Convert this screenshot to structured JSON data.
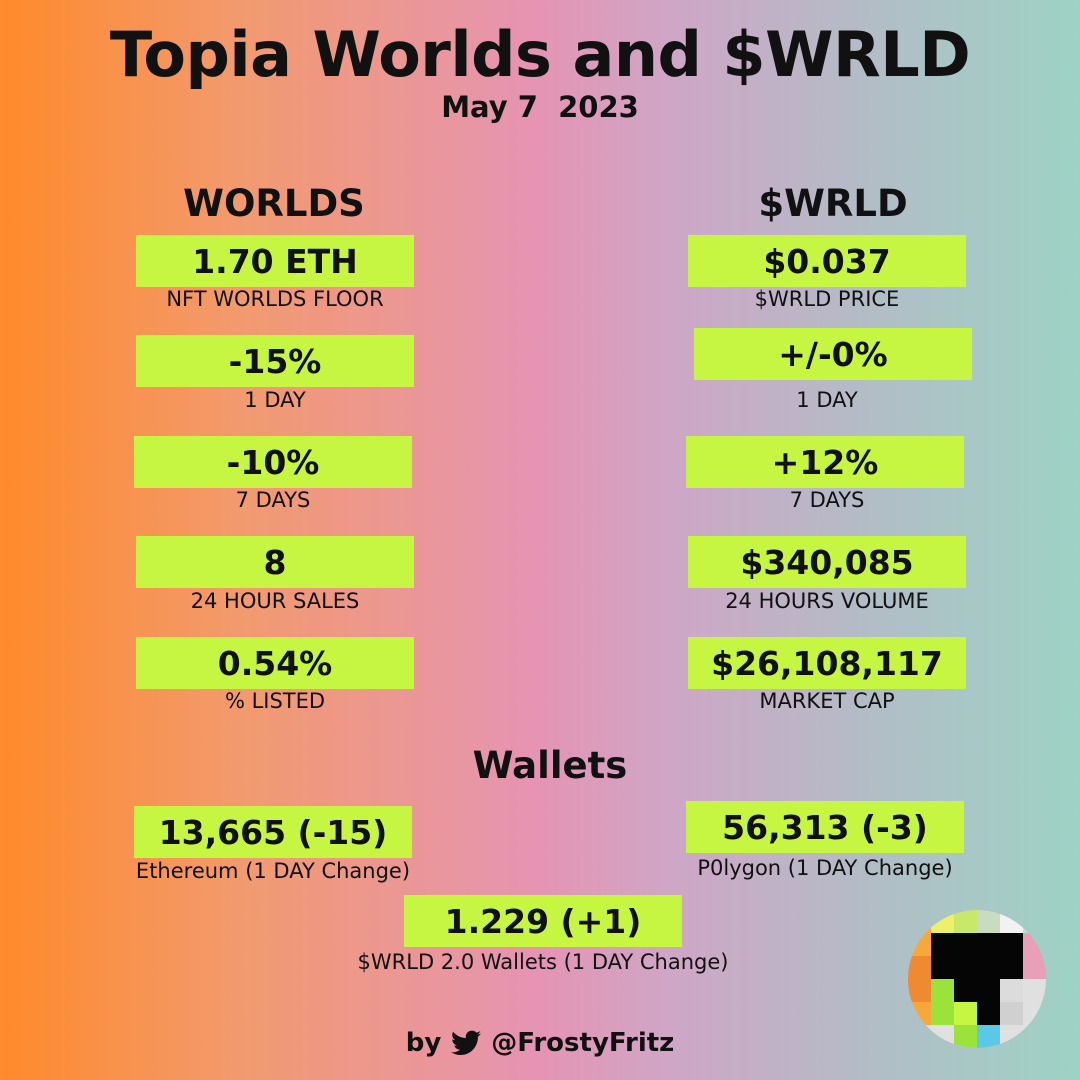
{
  "header": {
    "title": "Topia Worlds and $WRLD",
    "date": "May 7  2023"
  },
  "worlds": {
    "heading": "WORLDS",
    "stats": [
      {
        "value": "1.70 ETH",
        "label": "NFT WORLDS FLOOR"
      },
      {
        "value": "-15%",
        "label": "1 DAY"
      },
      {
        "value": "-10%",
        "label": "7 DAYS"
      },
      {
        "value": "8",
        "label": "24 HOUR SALES"
      },
      {
        "value": "0.54%",
        "label": "% LISTED"
      }
    ]
  },
  "wrld": {
    "heading": "$WRLD",
    "stats": [
      {
        "value": "$0.037",
        "label": "$WRLD PRICE"
      },
      {
        "value": "+/-0%",
        "label": "1 DAY"
      },
      {
        "value": "+12%",
        "label": "7 DAYS"
      },
      {
        "value": "$340,085",
        "label": "24 HOURS VOLUME"
      },
      {
        "value": "$26,108,117",
        "label": "MARKET CAP"
      }
    ]
  },
  "wallets": {
    "heading": "Wallets",
    "ethereum": {
      "value": "13,665 (-15)",
      "label": "Ethereum (1 DAY Change)"
    },
    "polygon": {
      "value": "56,313 (-3)",
      "label": "P0lygon (1 DAY Change)"
    },
    "wrld2": {
      "value": "1.229 (+1)",
      "label": "$WRLD 2.0 Wallets (1 DAY Change)"
    }
  },
  "footer": {
    "by": "by",
    "handle": "@FrostyFritz",
    "icon": "twitter-bird-icon"
  },
  "colors": {
    "highlight": "#c6f542",
    "gradient_left": "#ff8a2a",
    "gradient_mid": "#e594b4",
    "gradient_right": "#9dd3c5"
  }
}
